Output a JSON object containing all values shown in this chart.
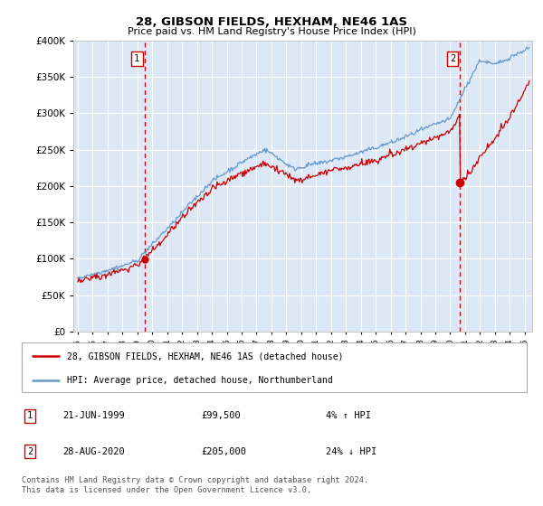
{
  "title": "28, GIBSON FIELDS, HEXHAM, NE46 1AS",
  "subtitle": "Price paid vs. HM Land Registry's House Price Index (HPI)",
  "ylim": [
    0,
    400000
  ],
  "yticks": [
    0,
    50000,
    100000,
    150000,
    200000,
    250000,
    300000,
    350000,
    400000
  ],
  "xlim_start": 1994.7,
  "xlim_end": 2025.5,
  "bg_color": "#dce8f5",
  "grid_color": "#ffffff",
  "red_line_color": "#cc0000",
  "blue_line_color": "#6699cc",
  "sale1_date": 1999.47,
  "sale1_price": 99500,
  "sale2_date": 2020.66,
  "sale2_price": 205000,
  "legend_label_red": "28, GIBSON FIELDS, HEXHAM, NE46 1AS (detached house)",
  "legend_label_blue": "HPI: Average price, detached house, Northumberland",
  "annotation1_date_str": "21-JUN-1999",
  "annotation1_price_str": "£99,500",
  "annotation1_hpi_str": "4% ↑ HPI",
  "annotation2_date_str": "28-AUG-2020",
  "annotation2_price_str": "£205,000",
  "annotation2_hpi_str": "24% ↓ HPI",
  "footer": "Contains HM Land Registry data © Crown copyright and database right 2024.\nThis data is licensed under the Open Government Licence v3.0.",
  "xtick_years": [
    1995,
    1996,
    1997,
    1998,
    1999,
    2000,
    2001,
    2002,
    2003,
    2004,
    2005,
    2006,
    2007,
    2008,
    2009,
    2010,
    2011,
    2012,
    2013,
    2014,
    2015,
    2016,
    2017,
    2018,
    2019,
    2020,
    2021,
    2022,
    2023,
    2024,
    2025
  ]
}
